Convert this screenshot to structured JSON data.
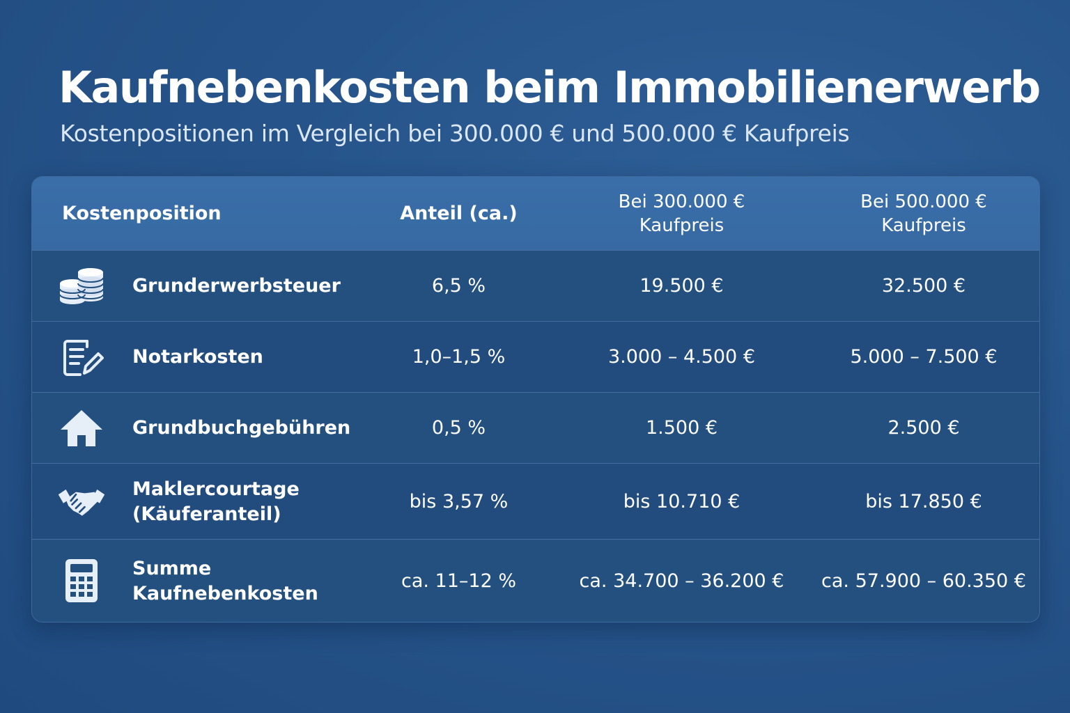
{
  "title": "Kaufnebenkosten beim Immobilienerwerb",
  "subtitle": "Kostenpositionen im Vergleich bei 300.000 € und 500.000 € Kaufpreis",
  "table": {
    "headers": {
      "position": "Kostenposition",
      "share": "Anteil (ca.)",
      "price1_line1": "Bei 300.000 €",
      "price1_line2": "Kaufpreis",
      "price2_line1": "Bei 500.000 €",
      "price2_line2": "Kaufpreis"
    },
    "rows": [
      {
        "icon": "coins-icon",
        "label_line1": "Grunderwerbsteuer",
        "label_line2": "",
        "share": "6,5 %",
        "price1": "19.500 €",
        "price2": "32.500 €"
      },
      {
        "icon": "document-pen-icon",
        "label_line1": "Notarkosten",
        "label_line2": "",
        "share": "1,0–1,5 %",
        "price1": "3.000 – 4.500 €",
        "price2": "5.000 – 7.500 €"
      },
      {
        "icon": "house-icon",
        "label_line1": "Grundbuchgebühren",
        "label_line2": "",
        "share": "0,5 %",
        "price1": "1.500 €",
        "price2": "2.500 €"
      },
      {
        "icon": "handshake-icon",
        "label_line1": "Maklercourtage",
        "label_line2": "(Käuferanteil)",
        "share": "bis 3,57 %",
        "price1": "bis 10.710 €",
        "price2": "bis 17.850 €"
      },
      {
        "icon": "calculator-icon",
        "label_line1": "Summe",
        "label_line2": "Kaufnebenkosten",
        "share": "ca. 11–12 %",
        "price1": "ca. 34.700 – 36.200 €",
        "price2": "ca. 57.900 – 60.350 €"
      }
    ]
  },
  "colors": {
    "background": "#26548a",
    "header_row": "#3a6ea8",
    "table_body": "#234d82",
    "icon": "#e6eef8",
    "text": "#ffffff"
  }
}
